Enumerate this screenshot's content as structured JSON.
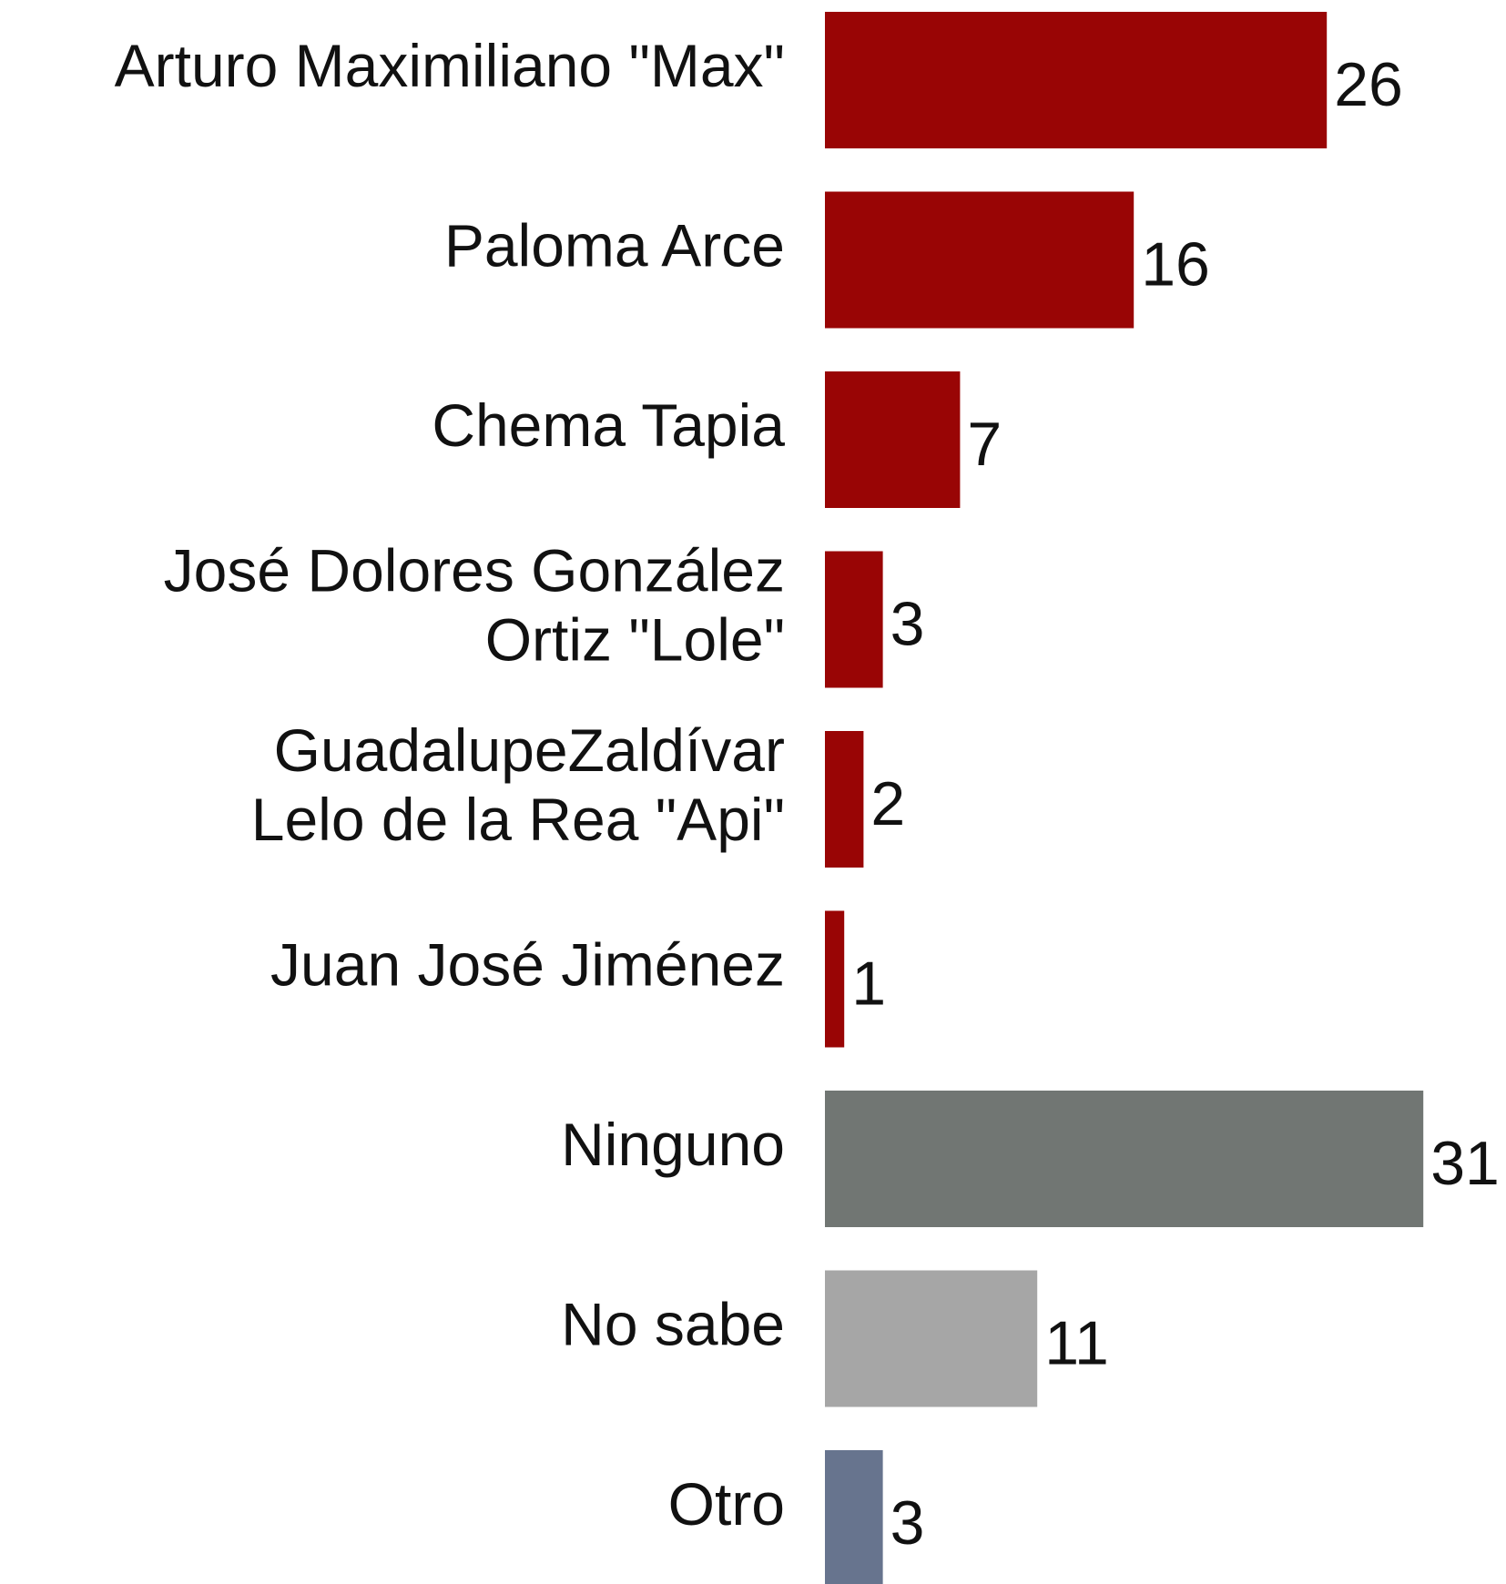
{
  "chart_data": {
    "type": "bar",
    "orientation": "horizontal",
    "categories": [
      [
        "Arturo Maximiliano \"Max\""
      ],
      [
        "Paloma Arce"
      ],
      [
        "Chema Tapia"
      ],
      [
        "José Dolores González",
        "Ortiz \"Lole\""
      ],
      [
        "GuadalupeZaldívar",
        "Lelo de la Rea \"Api\""
      ],
      [
        "Juan José Jiménez"
      ],
      [
        "Ninguno"
      ],
      [
        "No sabe"
      ],
      [
        "Otro"
      ]
    ],
    "values": [
      26,
      16,
      7,
      3,
      2,
      1,
      31,
      11,
      3
    ],
    "colors": [
      "#990505",
      "#990505",
      "#990505",
      "#990505",
      "#990505",
      "#990505",
      "#717673",
      "#a6a6a6",
      "#67748e"
    ]
  }
}
